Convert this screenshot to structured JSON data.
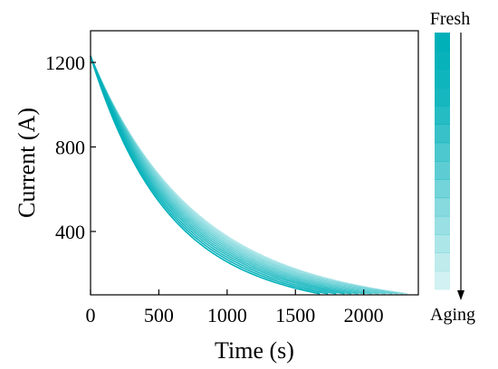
{
  "chart_data": {
    "type": "line",
    "xlabel": "Time (s)",
    "ylabel": "Current (A)",
    "xlim": [
      0,
      2400
    ],
    "ylim": [
      100,
      1350
    ],
    "xticks": [
      0,
      500,
      1000,
      1500,
      2000
    ],
    "yticks": [
      400,
      800,
      1200
    ],
    "grid": false,
    "color": "#00b0b9",
    "legend": {
      "placement": "right",
      "top_label": "Fresh",
      "bottom_label": "Aging",
      "direction": "top-to-bottom arrow from fresh to aging",
      "strip_count": 14
    },
    "series_family": {
      "description_count": 14,
      "start": {
        "x": 0,
        "y": 1230
      },
      "end_y": 105,
      "curves": [
        {
          "x_end": 1680,
          "decay_time": 550
        },
        {
          "x_end": 1740,
          "decay_time": 565
        },
        {
          "x_end": 1800,
          "decay_time": 580
        },
        {
          "x_end": 1860,
          "decay_time": 595
        },
        {
          "x_end": 1910,
          "decay_time": 610
        },
        {
          "x_end": 1960,
          "decay_time": 625
        },
        {
          "x_end": 2010,
          "decay_time": 640
        },
        {
          "x_end": 2060,
          "decay_time": 655
        },
        {
          "x_end": 2110,
          "decay_time": 670
        },
        {
          "x_end": 2160,
          "decay_time": 685
        },
        {
          "x_end": 2210,
          "decay_time": 700
        },
        {
          "x_end": 2250,
          "decay_time": 715
        },
        {
          "x_end": 2290,
          "decay_time": 730
        },
        {
          "x_end": 2320,
          "decay_time": 745
        }
      ]
    }
  }
}
